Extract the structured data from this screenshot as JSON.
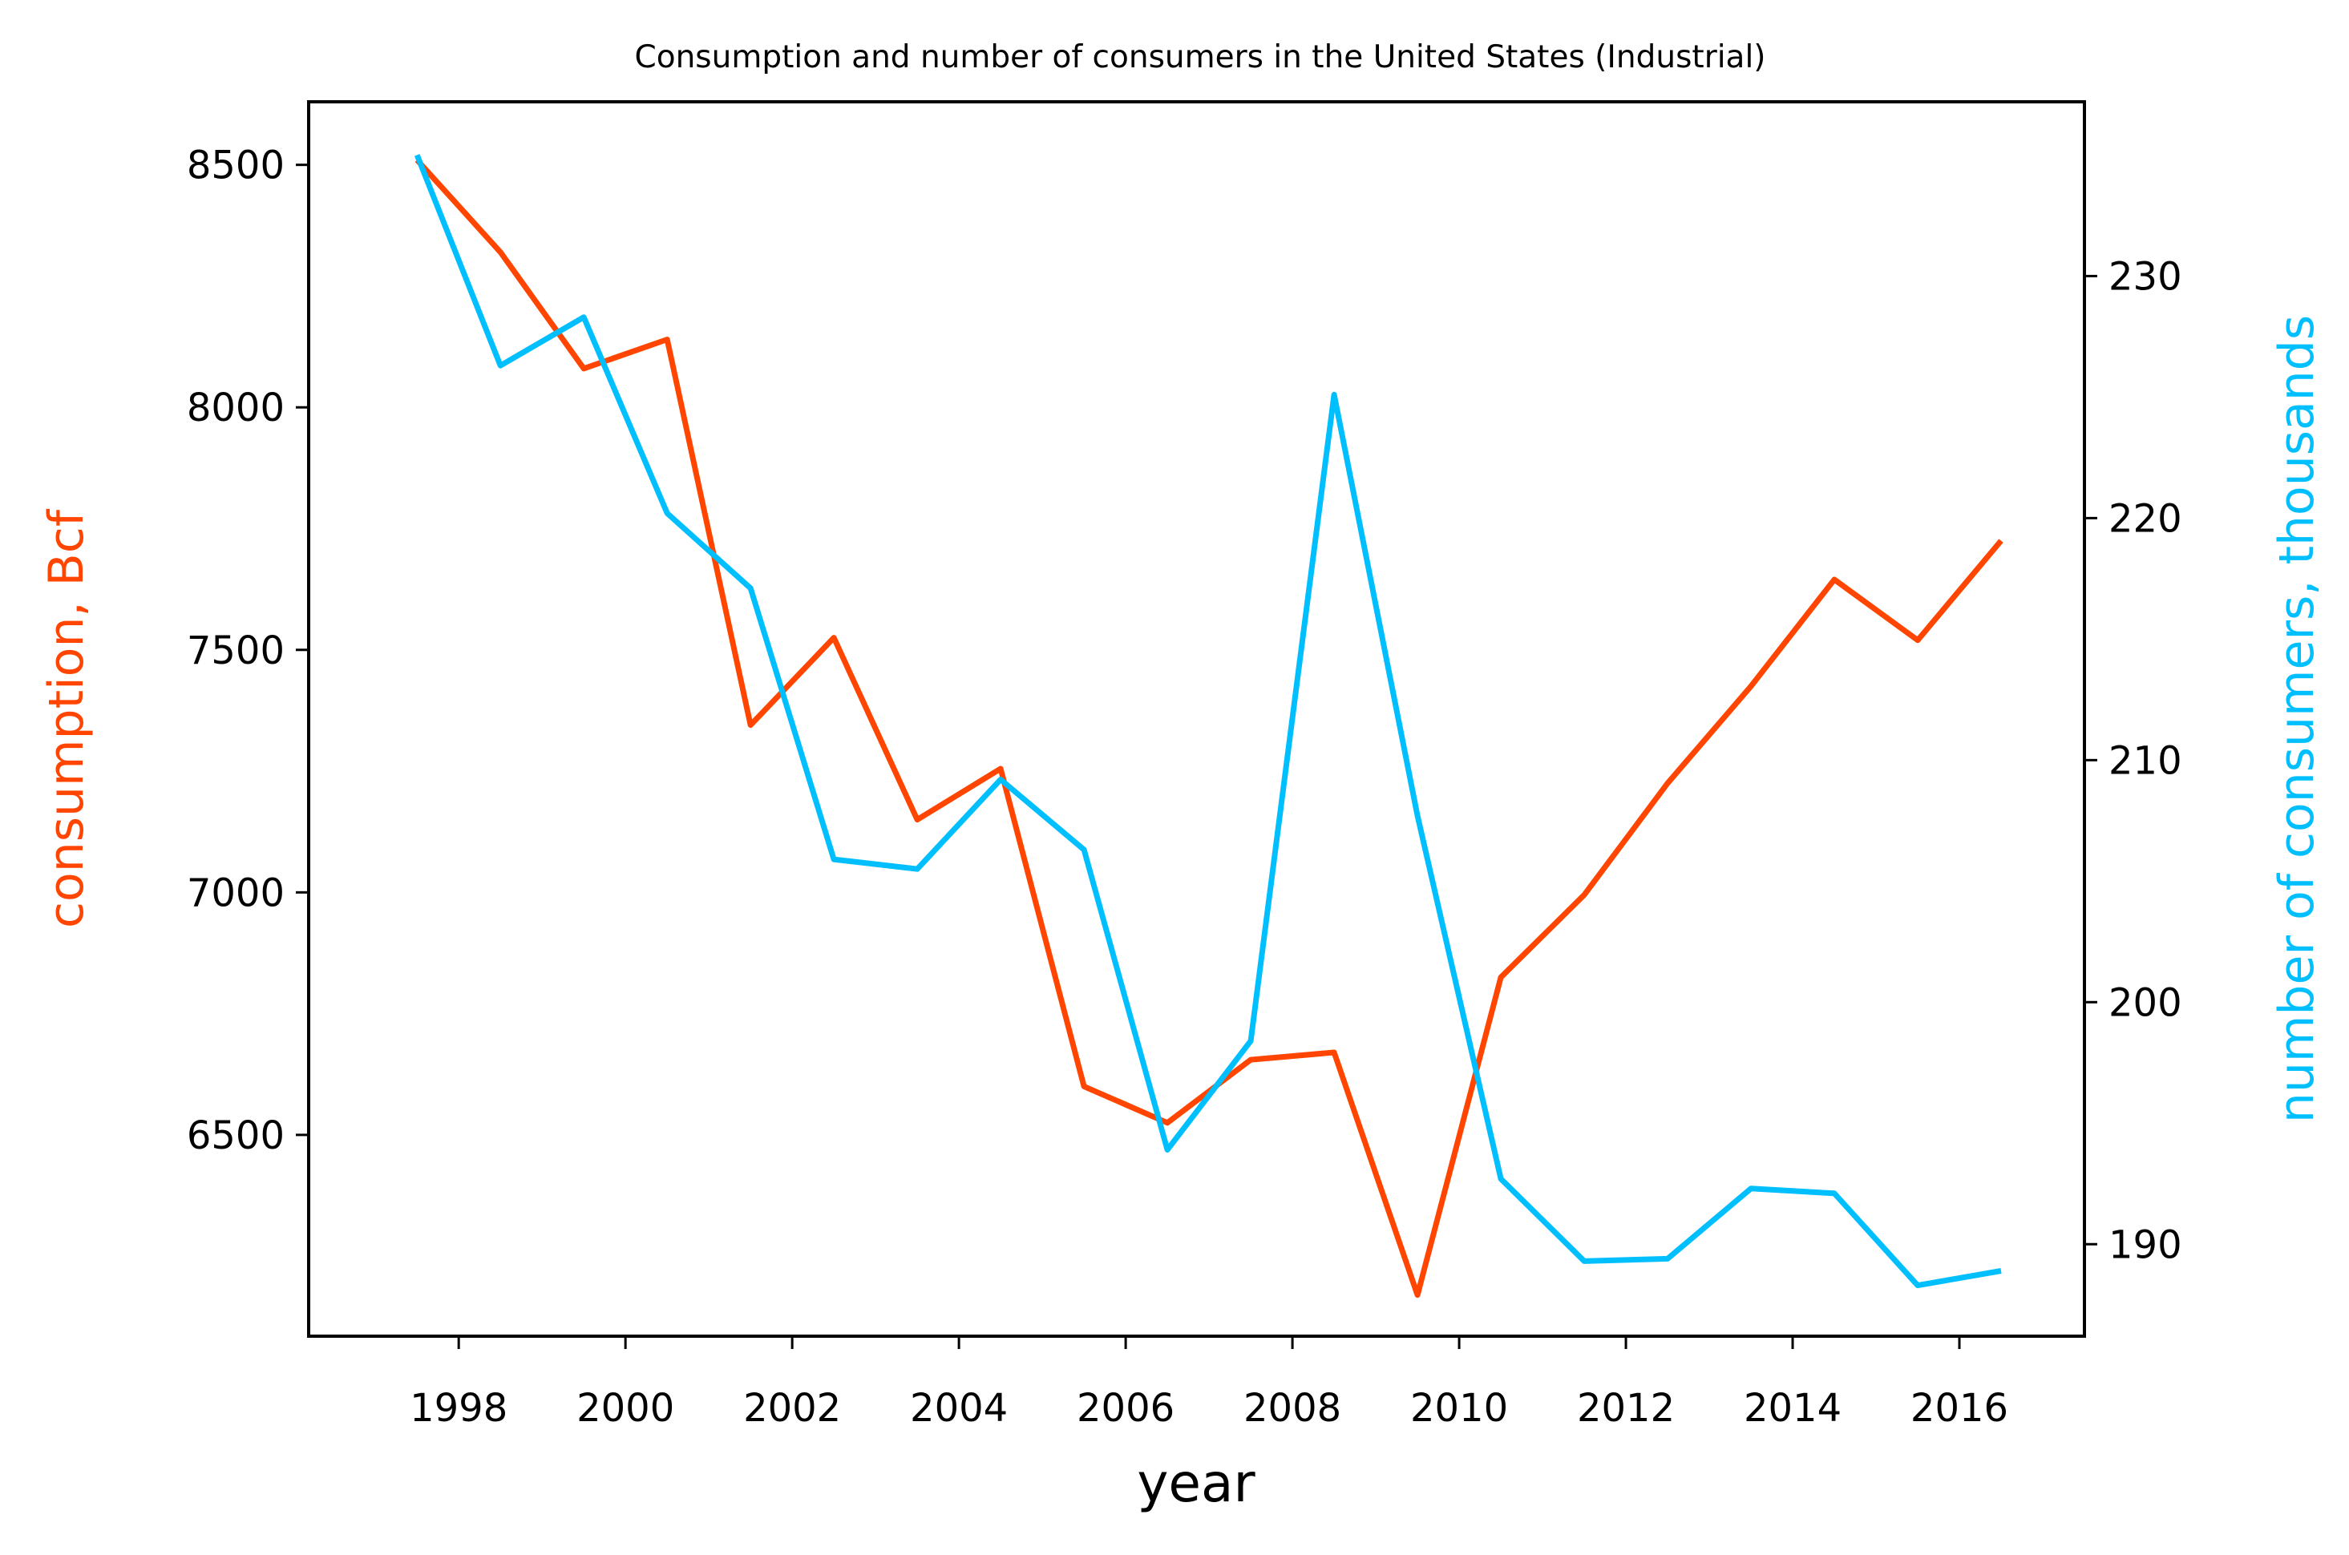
{
  "chart_data": {
    "type": "line",
    "title": "Consumption and number of consumers in the United States (Industrial)",
    "xlabel": "year",
    "ylabel_left": "consumption, Bcf",
    "ylabel_right": "number of consumers, thousands",
    "x": [
      1997.5,
      1998.5,
      1999.5,
      2000.5,
      2001.5,
      2002.5,
      2003.5,
      2004.5,
      2005.5,
      2006.5,
      2007.5,
      2008.5,
      2009.5,
      2010.5,
      2011.5,
      2012.5,
      2013.5,
      2014.5,
      2015.5,
      2016.5
    ],
    "xlim": [
      1996.2,
      2017.5
    ],
    "xticks": [
      1998,
      2000,
      2002,
      2004,
      2006,
      2008,
      2010,
      2012,
      2014,
      2016
    ],
    "ylim_left": [
      6085,
      8630
    ],
    "yticks_left": [
      6500,
      7000,
      7500,
      8000,
      8500
    ],
    "ylim_right": [
      186.2,
      237.2
    ],
    "yticks_right": [
      190,
      200,
      210,
      220,
      230
    ],
    "series": [
      {
        "name": "consumption, Bcf",
        "axis": "left",
        "color": "#ff4500",
        "values": [
          8510,
          8320,
          8080,
          8140,
          7345,
          7525,
          7150,
          7255,
          6600,
          6525,
          6655,
          6670,
          6170,
          6825,
          6995,
          7225,
          7425,
          7645,
          7520,
          7725
        ]
      },
      {
        "name": "number of consumers, thousands",
        "axis": "right",
        "color": "#00bfff",
        "values": [
          235.0,
          226.3,
          228.3,
          220.2,
          217.1,
          205.9,
          205.5,
          209.2,
          206.3,
          193.9,
          198.4,
          225.1,
          207.7,
          192.7,
          189.3,
          189.4,
          192.3,
          192.1,
          188.3,
          188.9
        ]
      }
    ],
    "grid": false,
    "legend": "none"
  }
}
